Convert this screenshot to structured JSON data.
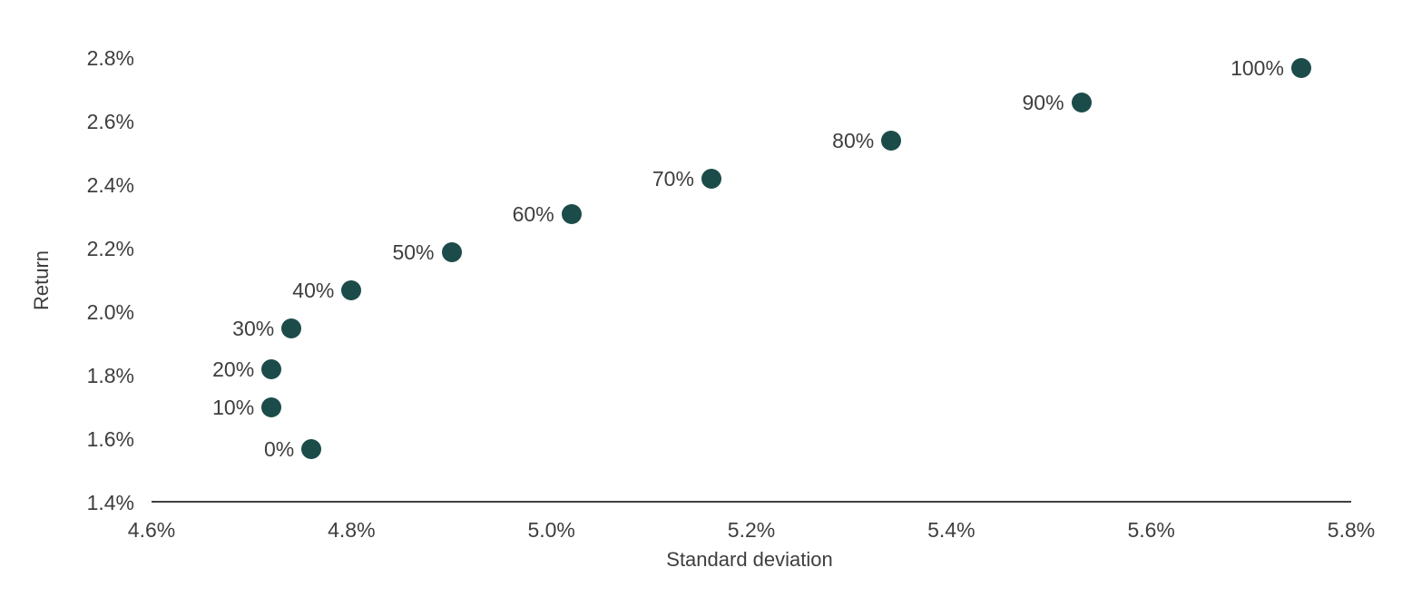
{
  "chart_data": {
    "type": "scatter",
    "title": "",
    "xlabel": "Standard deviation",
    "ylabel": "Return",
    "xlim": [
      4.6,
      5.8
    ],
    "ylim": [
      1.4,
      2.8
    ],
    "grid": false,
    "legend_position": "none",
    "point_color": "#1c4c49",
    "axis_color": "#3f3f3f",
    "text_color": "#3e3e3e",
    "x_ticks": [
      {
        "label": "4.6%",
        "value": 4.6
      },
      {
        "label": "4.8%",
        "value": 4.8
      },
      {
        "label": "5.0%",
        "value": 5.0
      },
      {
        "label": "5.2%",
        "value": 5.2
      },
      {
        "label": "5.4%",
        "value": 5.4
      },
      {
        "label": "5.6%",
        "value": 5.6
      },
      {
        "label": "5.8%",
        "value": 5.8
      }
    ],
    "y_ticks": [
      {
        "label": "1.4%",
        "value": 1.4
      },
      {
        "label": "1.6%",
        "value": 1.6
      },
      {
        "label": "1.8%",
        "value": 1.8
      },
      {
        "label": "2.0%",
        "value": 2.0
      },
      {
        "label": "2.2%",
        "value": 2.2
      },
      {
        "label": "2.4%",
        "value": 2.4
      },
      {
        "label": "2.6%",
        "value": 2.6
      },
      {
        "label": "2.8%",
        "value": 2.8
      }
    ],
    "points": [
      {
        "label": "0%",
        "x": 4.76,
        "y": 1.57
      },
      {
        "label": "10%",
        "x": 4.72,
        "y": 1.7
      },
      {
        "label": "20%",
        "x": 4.72,
        "y": 1.82
      },
      {
        "label": "30%",
        "x": 4.74,
        "y": 1.95
      },
      {
        "label": "40%",
        "x": 4.8,
        "y": 2.07
      },
      {
        "label": "50%",
        "x": 4.9,
        "y": 2.19
      },
      {
        "label": "60%",
        "x": 5.02,
        "y": 2.31
      },
      {
        "label": "70%",
        "x": 5.16,
        "y": 2.42
      },
      {
        "label": "80%",
        "x": 5.34,
        "y": 2.54
      },
      {
        "label": "90%",
        "x": 5.53,
        "y": 2.66
      },
      {
        "label": "100%",
        "x": 5.75,
        "y": 2.77
      }
    ]
  }
}
